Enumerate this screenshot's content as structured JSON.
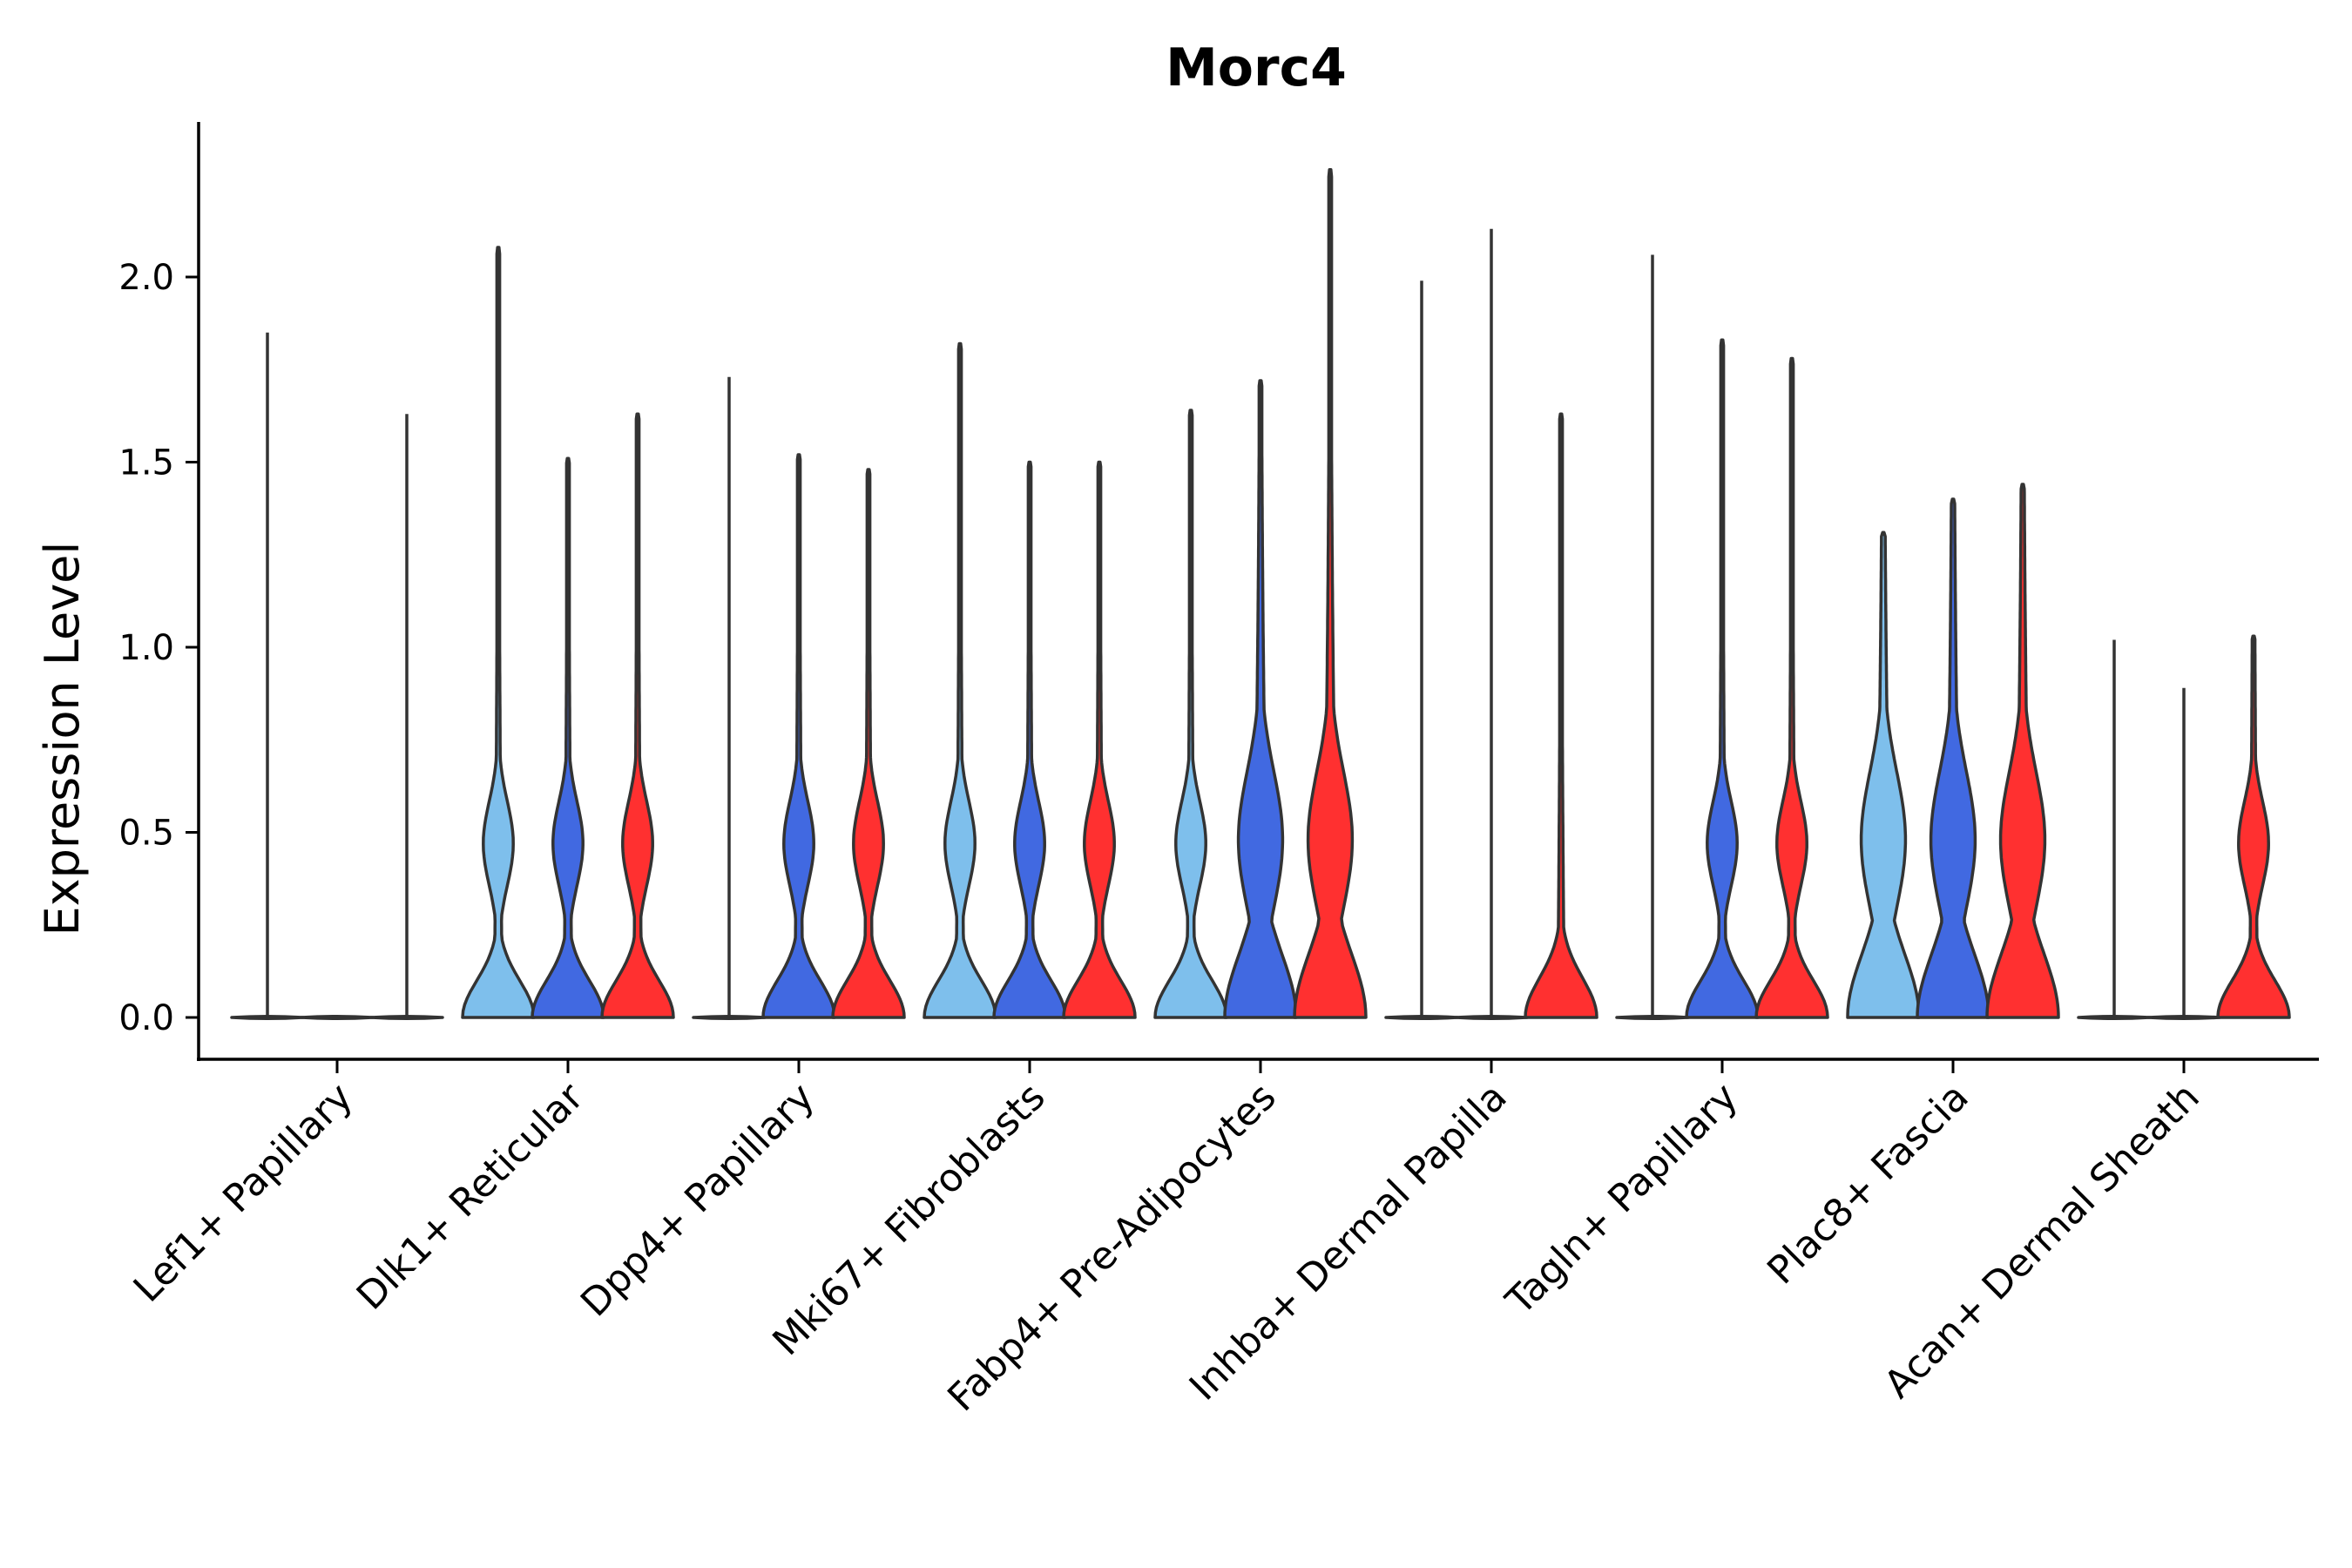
{
  "chart_data": {
    "type": "violin",
    "title": "Morc4",
    "xlabel": "",
    "ylabel": "Expression Level",
    "ylim": [
      -0.12,
      2.4
    ],
    "yticks": [
      0.0,
      0.5,
      1.0,
      1.5,
      2.0
    ],
    "ytick_labels": [
      "0.0",
      "0.5",
      "1.0",
      "1.5",
      "2.0"
    ],
    "grid": false,
    "legend": "none",
    "series_colors": [
      "#7EBFEC",
      "#4169E1",
      "#FF3030"
    ],
    "categories": [
      "Lef1+ Papillary",
      "Dlk1+ Reticular",
      "Dpp4+ Papillary",
      "Mki67+ Fibroblasts",
      "Fabp4+ Pre-Adipocytes",
      "Inhba+ Dermal Papilla",
      "Tagln+ Papillary",
      "Plac8+ Fascia",
      "Acan+ Dermal Sheath"
    ],
    "violins": [
      [
        {
          "max": 1.85,
          "shape": "flat"
        },
        {
          "max": 0.0,
          "shape": "flat"
        },
        {
          "max": 1.63,
          "shape": "flat"
        }
      ],
      [
        {
          "max": 2.08,
          "shape": "lowmid"
        },
        {
          "max": 1.51,
          "shape": "lowmid"
        },
        {
          "max": 1.63,
          "shape": "lowmid"
        }
      ],
      [
        {
          "max": 1.73,
          "shape": "flat"
        },
        {
          "max": 1.52,
          "shape": "lowmid"
        },
        {
          "max": 1.48,
          "shape": "lowmid"
        }
      ],
      [
        {
          "max": 1.82,
          "shape": "lowmid"
        },
        {
          "max": 1.5,
          "shape": "lowmid"
        },
        {
          "max": 1.5,
          "shape": "lowmid"
        }
      ],
      [
        {
          "max": 1.64,
          "shape": "lowmid"
        },
        {
          "max": 1.72,
          "shape": "wide"
        },
        {
          "max": 2.29,
          "shape": "wide"
        }
      ],
      [
        {
          "max": 1.99,
          "shape": "flat"
        },
        {
          "max": 2.13,
          "shape": "flat"
        },
        {
          "max": 1.63,
          "shape": "low"
        }
      ],
      [
        {
          "max": 2.06,
          "shape": "flat"
        },
        {
          "max": 1.83,
          "shape": "lowmid"
        },
        {
          "max": 1.78,
          "shape": "lowmid"
        }
      ],
      [
        {
          "max": 1.31,
          "shape": "wide"
        },
        {
          "max": 1.4,
          "shape": "wide"
        },
        {
          "max": 1.44,
          "shape": "wide"
        }
      ],
      [
        {
          "max": 1.02,
          "shape": "flat"
        },
        {
          "max": 0.89,
          "shape": "flat"
        },
        {
          "max": 1.03,
          "shape": "lowmid"
        }
      ]
    ]
  }
}
